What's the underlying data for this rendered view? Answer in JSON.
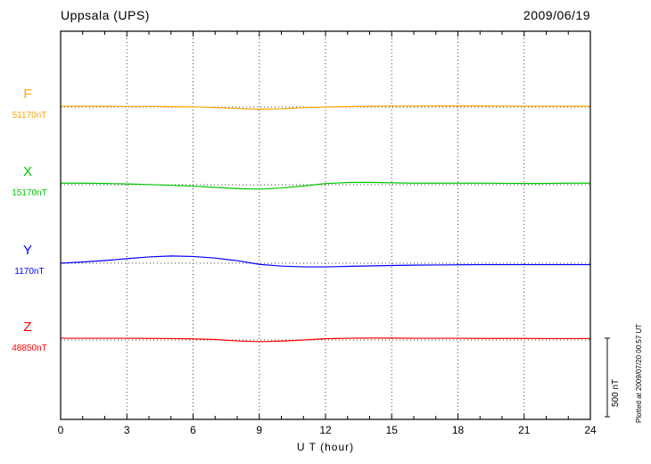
{
  "header": {
    "station_title": "Uppsala (UPS)",
    "date_label": "2009/06/19"
  },
  "chart_data": {
    "type": "line",
    "title": "Uppsala (UPS)",
    "date_label": "2009/06/19",
    "xlabel": "U T (hour)",
    "x_range": [
      0,
      24
    ],
    "x_step_hours": 1,
    "x_ticks": [
      0,
      3,
      6,
      9,
      12,
      15,
      18,
      21,
      24
    ],
    "grid": "dotted vertical lines every 3 hours; dotted horizontal baseline per trace",
    "legend_position": "left margin, one colored letter and baseline value per trace",
    "scale_bar": {
      "label": "500 nT",
      "value_nT": 500
    },
    "footer_note": "Plotted at 2009/07/20 00:57 UT",
    "series": [
      {
        "name": "F",
        "baseline_label": "51170nT",
        "baseline_nT": 51170,
        "color": "#FFA500",
        "deviation_nT": [
          5,
          5,
          5,
          4,
          4,
          3,
          1,
          -3,
          -9,
          -14,
          -11,
          -4,
          0,
          3,
          5,
          6,
          6,
          7,
          7,
          7,
          6,
          5,
          5,
          5,
          5
        ]
      },
      {
        "name": "X",
        "baseline_label": "15170nT",
        "baseline_nT": 15170,
        "color": "#00C800",
        "deviation_nT": [
          10,
          10,
          8,
          5,
          1,
          -4,
          -9,
          -17,
          -25,
          -28,
          -21,
          -8,
          7,
          14,
          15,
          12,
          10,
          10,
          10,
          10,
          9,
          8,
          8,
          10,
          10
        ]
      },
      {
        "name": "Y",
        "baseline_label": "1170nT",
        "baseline_nT": 1170,
        "color": "#0000FF",
        "deviation_nT": [
          0,
          8,
          17,
          29,
          40,
          46,
          43,
          33,
          16,
          -7,
          -18,
          -23,
          -23,
          -20,
          -17,
          -14,
          -12,
          -11,
          -10,
          -9,
          -9,
          -9,
          -9,
          -9,
          -9
        ]
      },
      {
        "name": "Z",
        "baseline_label": "48850nT",
        "baseline_nT": 48850,
        "color": "#FF0000",
        "deviation_nT": [
          11,
          11,
          11,
          11,
          10,
          9,
          7,
          3,
          -6,
          -11,
          -7,
          0,
          8,
          11,
          12,
          12,
          11,
          11,
          11,
          10,
          10,
          10,
          9,
          9,
          9
        ]
      }
    ]
  }
}
